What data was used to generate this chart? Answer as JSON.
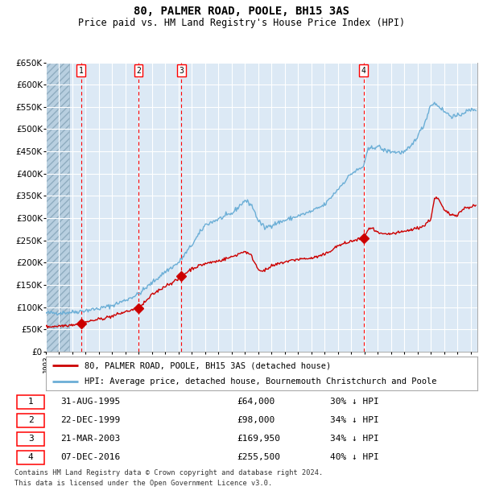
{
  "title": "80, PALMER ROAD, POOLE, BH15 3AS",
  "subtitle": "Price paid vs. HM Land Registry's House Price Index (HPI)",
  "title_fontsize": 10,
  "subtitle_fontsize": 8.5,
  "legend_line1": "80, PALMER ROAD, POOLE, BH15 3AS (detached house)",
  "legend_line2": "HPI: Average price, detached house, Bournemouth Christchurch and Poole",
  "footer1": "Contains HM Land Registry data © Crown copyright and database right 2024.",
  "footer2": "This data is licensed under the Open Government Licence v3.0.",
  "sales": [
    {
      "num": 1,
      "date_x": 1995.66,
      "price": 64000,
      "label": "31-AUG-1995",
      "price_str": "£64,000",
      "pct": "30% ↓ HPI"
    },
    {
      "num": 2,
      "date_x": 1999.97,
      "price": 98000,
      "label": "22-DEC-1999",
      "price_str": "£98,000",
      "pct": "34% ↓ HPI"
    },
    {
      "num": 3,
      "date_x": 2003.22,
      "price": 169950,
      "label": "21-MAR-2003",
      "price_str": "£169,950",
      "pct": "34% ↓ HPI"
    },
    {
      "num": 4,
      "date_x": 2016.93,
      "price": 255500,
      "label": "07-DEC-2016",
      "price_str": "£255,500",
      "pct": "40% ↓ HPI"
    }
  ],
  "ylim": [
    0,
    650000
  ],
  "xlim": [
    1993.0,
    2025.5
  ],
  "yticks": [
    0,
    50000,
    100000,
    150000,
    200000,
    250000,
    300000,
    350000,
    400000,
    450000,
    500000,
    550000,
    600000,
    650000
  ],
  "xticks": [
    1993,
    1994,
    1995,
    1996,
    1997,
    1998,
    1999,
    2000,
    2001,
    2002,
    2003,
    2004,
    2005,
    2006,
    2007,
    2008,
    2009,
    2010,
    2011,
    2012,
    2013,
    2014,
    2015,
    2016,
    2017,
    2018,
    2019,
    2020,
    2021,
    2022,
    2023,
    2024,
    2025
  ],
  "bg_color": "#dce9f5",
  "grid_color": "#ffffff",
  "hpi_color": "#6baed6",
  "sale_color": "#cc0000",
  "hatch_color": "#b8cfe0"
}
